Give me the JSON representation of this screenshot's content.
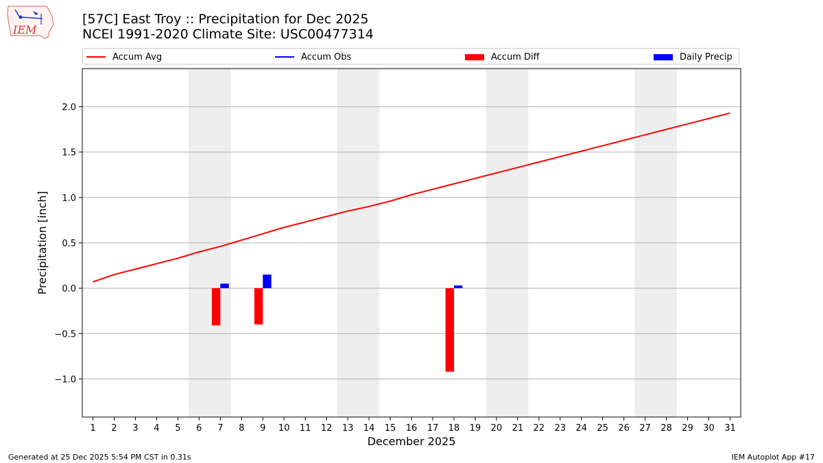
{
  "header": {
    "logo_text": "IEM",
    "title_line1": "[57C] East Troy :: Precipitation for Dec 2025",
    "title_line2": "NCEI 1991-2020 Climate Site: USC00477314"
  },
  "colors": {
    "accum_avg": "#ff0000",
    "accum_obs": "#0000ff",
    "accum_diff": "#ff0000",
    "daily_precip": "#0000ff",
    "weekend_shade": "#eeeeee",
    "grid": "#b0b0b0"
  },
  "chart_data": {
    "type": "bar",
    "title": "[57C] East Troy :: Precipitation for Dec 2025",
    "subtitle": "NCEI 1991-2020 Climate Site: USC00477314",
    "xlabel": "December 2025",
    "ylabel": "Precipitation [inch]",
    "xlim": [
      0.5,
      31.5
    ],
    "ylim": [
      -1.42,
      2.42
    ],
    "x_ticks": [
      1,
      2,
      3,
      4,
      5,
      6,
      7,
      8,
      9,
      10,
      11,
      12,
      13,
      14,
      15,
      16,
      17,
      18,
      19,
      20,
      21,
      22,
      23,
      24,
      25,
      26,
      27,
      28,
      29,
      30,
      31
    ],
    "x_tick_labels": [
      "1",
      "2",
      "3",
      "4",
      "5",
      "6",
      "7",
      "8",
      "9",
      "10",
      "11",
      "12",
      "13",
      "14",
      "15",
      "16",
      "17",
      "18",
      "19",
      "20",
      "21",
      "22",
      "23",
      "24",
      "25",
      "26",
      "27",
      "28",
      "29",
      "30",
      "31"
    ],
    "y_ticks": [
      -1.0,
      -0.5,
      0.0,
      0.5,
      1.0,
      1.5,
      2.0
    ],
    "y_tick_labels": [
      "−1.0",
      "−0.5",
      "0.0",
      "0.5",
      "1.0",
      "1.5",
      "2.0"
    ],
    "grid": "y",
    "legend_location": "top",
    "weekend_spans": [
      [
        6,
        7
      ],
      [
        13,
        14
      ],
      [
        20,
        21
      ],
      [
        27,
        28
      ]
    ],
    "series": [
      {
        "name": "Accum Avg",
        "kind": "line",
        "x": [
          1,
          2,
          3,
          4,
          5,
          6,
          7,
          8,
          9,
          10,
          11,
          12,
          13,
          14,
          15,
          16,
          17,
          18,
          19,
          20,
          21,
          22,
          23,
          24,
          25,
          26,
          27,
          28,
          29,
          30,
          31
        ],
        "values": [
          0.07,
          0.15,
          0.21,
          0.27,
          0.33,
          0.4,
          0.46,
          0.53,
          0.6,
          0.67,
          0.73,
          0.79,
          0.85,
          0.9,
          0.96,
          1.03,
          1.09,
          1.15,
          1.21,
          1.27,
          1.33,
          1.39,
          1.45,
          1.51,
          1.57,
          1.63,
          1.69,
          1.75,
          1.81,
          1.87,
          1.93
        ]
      },
      {
        "name": "Accum Obs",
        "kind": "line",
        "x": [],
        "values": []
      },
      {
        "name": "Accum Diff",
        "kind": "bar",
        "offset": -0.2,
        "x": [
          7,
          9,
          18
        ],
        "values": [
          -0.41,
          -0.4,
          -0.92
        ]
      },
      {
        "name": "Daily Precip",
        "kind": "bar",
        "offset": 0.2,
        "x": [
          7,
          9,
          18
        ],
        "values": [
          0.05,
          0.15,
          0.03
        ]
      }
    ]
  },
  "footer": {
    "generated": "Generated at 25 Dec 2025 5:54 PM CST in 0.31s",
    "app": "IEM Autoplot App #17"
  }
}
